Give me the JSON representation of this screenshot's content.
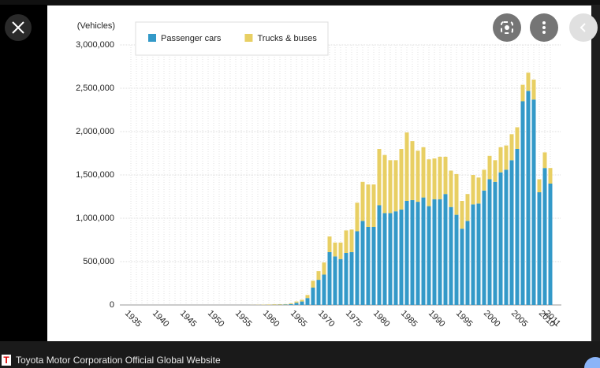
{
  "chart_data": {
    "type": "bar",
    "stacked": true,
    "y_label": "(Vehicles)",
    "categories": [
      "1935",
      null,
      null,
      null,
      null,
      "1940",
      null,
      null,
      null,
      null,
      "1945",
      null,
      null,
      null,
      null,
      "1950",
      null,
      null,
      null,
      null,
      "1955",
      null,
      null,
      null,
      null,
      "1960",
      null,
      null,
      null,
      null,
      "1965",
      null,
      null,
      null,
      null,
      "1970",
      null,
      null,
      null,
      null,
      "1975",
      null,
      null,
      null,
      null,
      "1980",
      null,
      null,
      null,
      null,
      "1985",
      null,
      null,
      null,
      null,
      "1990",
      null,
      null,
      null,
      null,
      "1995",
      null,
      null,
      null,
      null,
      "2000",
      null,
      null,
      null,
      null,
      "2005",
      null,
      null,
      null,
      null,
      "2010",
      "2011"
    ],
    "series": [
      {
        "name": "Passenger cars",
        "color": "#3399c8",
        "values": [
          0,
          0,
          0,
          0,
          0,
          0,
          0,
          0,
          0,
          0,
          0,
          0,
          0,
          0,
          0,
          0,
          0,
          0,
          0,
          0,
          0,
          0,
          0,
          300,
          500,
          1000,
          2000,
          3000,
          5000,
          10000,
          25000,
          40000,
          80000,
          200000,
          290000,
          350000,
          610000,
          560000,
          530000,
          600000,
          610000,
          850000,
          970000,
          900000,
          900000,
          1150000,
          1060000,
          1060000,
          1080000,
          1100000,
          1200000,
          1210000,
          1190000,
          1240000,
          1140000,
          1220000,
          1220000,
          1280000,
          1130000,
          1040000,
          880000,
          970000,
          1160000,
          1170000,
          1320000,
          1450000,
          1420000,
          1530000,
          1560000,
          1670000,
          1800000,
          2350000,
          2470000,
          2370000,
          1300000,
          1580000,
          1400000
        ]
      },
      {
        "name": "Trucks & buses",
        "color": "#e8cf63",
        "values": [
          0,
          0,
          0,
          0,
          0,
          0,
          0,
          0,
          0,
          0,
          0,
          0,
          0,
          0,
          0,
          0,
          0,
          0,
          0,
          0,
          0,
          0,
          1000,
          2000,
          3000,
          5000,
          6000,
          6000,
          5000,
          10000,
          15000,
          20000,
          35000,
          80000,
          100000,
          140000,
          180000,
          160000,
          190000,
          260000,
          260000,
          330000,
          450000,
          490000,
          490000,
          650000,
          670000,
          610000,
          590000,
          700000,
          790000,
          680000,
          590000,
          580000,
          540000,
          470000,
          490000,
          430000,
          420000,
          470000,
          320000,
          310000,
          340000,
          300000,
          240000,
          270000,
          250000,
          290000,
          280000,
          300000,
          250000,
          190000,
          210000,
          230000,
          150000,
          180000,
          180000
        ]
      }
    ],
    "ylim": [
      0,
      3000000
    ],
    "yticks": [
      0,
      {
        "value": 500000,
        "label": "500,000"
      },
      {
        "value": 1000000,
        "label": "1,000,000"
      },
      {
        "value": 1500000,
        "label": "1,500,000"
      },
      {
        "value": 2000000,
        "label": "2,000,000"
      },
      {
        "value": 2500000,
        "label": "2,500,000"
      },
      {
        "value": 3000000,
        "label": "3,000,000"
      }
    ],
    "grid": true,
    "legend": "top-left"
  },
  "viewer": {
    "logo": "T",
    "caption": "Toyota Motor Corporation Official Global Website"
  }
}
